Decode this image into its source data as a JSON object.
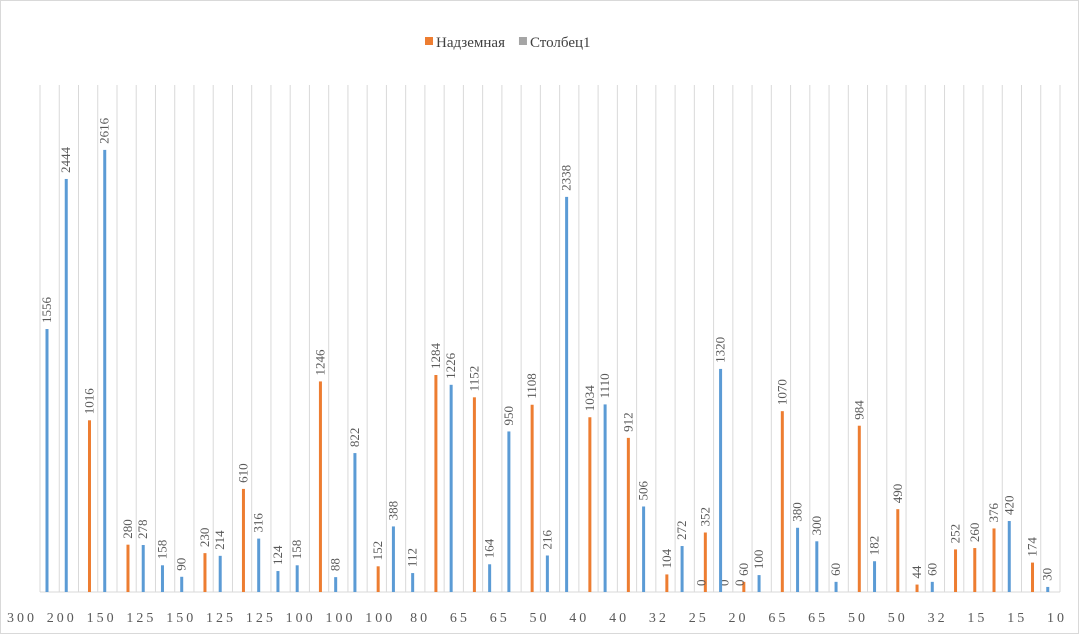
{
  "chart_data": {
    "type": "bar",
    "categories": [
      "300",
      null,
      "200",
      null,
      "150",
      null,
      "125",
      null,
      "150",
      null,
      "125",
      null,
      "125",
      null,
      "100",
      null,
      "100",
      null,
      "100",
      null,
      "80",
      null,
      "65",
      null,
      "65",
      null,
      "50",
      null,
      "40",
      null,
      "40",
      null,
      "32",
      null,
      "25",
      null,
      "20",
      null,
      "65",
      null,
      "65",
      null,
      "50",
      null,
      "50",
      null,
      "32",
      null,
      "15",
      null,
      "15",
      null,
      "10"
    ],
    "series": [
      {
        "name": "Надземная",
        "color": "#ed7d31",
        "values": [
          null,
          null,
          1016,
          null,
          280,
          null,
          null,
          null,
          230,
          null,
          610,
          null,
          null,
          null,
          1246,
          null,
          null,
          152,
          null,
          null,
          1284,
          null,
          1152,
          null,
          null,
          1108,
          null,
          null,
          1034,
          null,
          912,
          null,
          104,
          null,
          352,
          0,
          60,
          null,
          1070,
          null,
          null,
          null,
          984,
          null,
          490,
          44,
          null,
          252,
          260,
          376,
          null,
          174,
          null
        ]
      },
      {
        "name": "Столбец1",
        "color": "#5b9bd5",
        "legend_color": "#a5a5a5",
        "values": [
          1556,
          2444,
          null,
          2616,
          null,
          278,
          158,
          90,
          null,
          214,
          null,
          316,
          124,
          158,
          null,
          88,
          822,
          null,
          388,
          112,
          null,
          1226,
          null,
          164,
          950,
          null,
          216,
          2338,
          null,
          1110,
          null,
          506,
          null,
          272,
          0,
          1320,
          0,
          100,
          null,
          380,
          300,
          60,
          null,
          182,
          null,
          null,
          60,
          null,
          null,
          null,
          420,
          null,
          30
        ]
      }
    ],
    "ylim": [
      0,
      3000
    ],
    "grid": true,
    "legend": "top"
  }
}
